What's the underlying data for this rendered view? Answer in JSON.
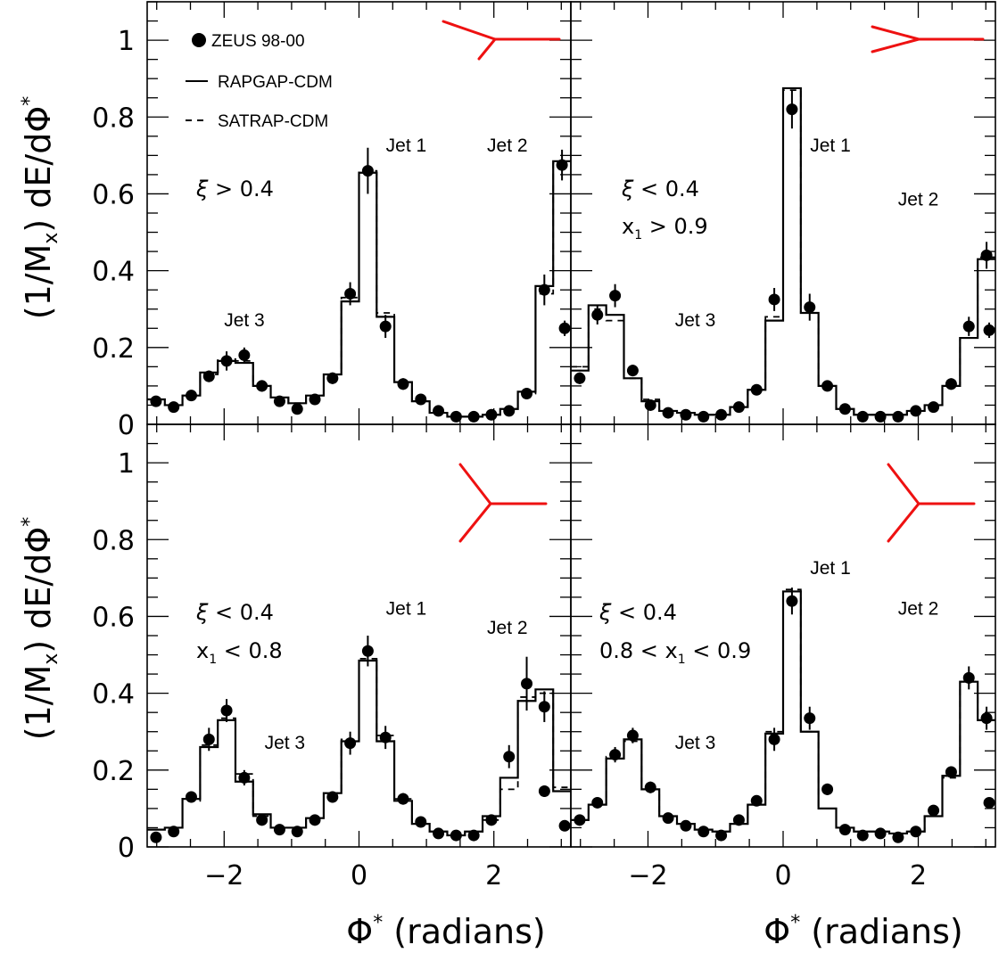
{
  "y_axis_title_parts": [
    "(1/M",
    "x",
    ") dE/d",
    "Φ",
    "*"
  ],
  "x_axis_title_parts": [
    "Φ",
    "*",
    " (radians)"
  ],
  "legend": {
    "data_label": "ZEUS 98-00",
    "solid_label": "RAPGAP-CDM",
    "dashed_label": "SATRAP-CDM"
  },
  "colors": {
    "diagram": "#ee1111",
    "ink": "#000000"
  },
  "chart_data": {
    "type": "histogram-with-points",
    "xlim": [
      -3.14159,
      3.14159
    ],
    "ylim": [
      0,
      1.1
    ],
    "x_ticks": [
      -2,
      0,
      2
    ],
    "y_ticks": [
      0,
      0.2,
      0.4,
      0.6,
      0.8,
      1
    ],
    "x_tick_labels": [
      "−2",
      "0",
      "2"
    ],
    "y_tick_labels": [
      "0",
      "0.2",
      "0.4",
      "0.6",
      "0.8",
      "1"
    ],
    "bin_edges": [
      -3.14159,
      -2.87979,
      -2.61799,
      -2.35619,
      -2.0944,
      -1.8326,
      -1.5708,
      -1.309,
      -1.0472,
      -0.7854,
      -0.5236,
      -0.2618,
      0,
      0.2618,
      0.5236,
      0.7854,
      1.0472,
      1.309,
      1.5708,
      1.8326,
      2.0944,
      2.35619,
      2.61799,
      2.87979,
      3.14159
    ],
    "panels": [
      {
        "id": "top-left",
        "cuts": [
          [
            "ξ",
            " > 0.4"
          ]
        ],
        "jet_labels": [
          {
            "text": "Jet 1",
            "x": 0.7,
            "y": 0.71
          },
          {
            "text": "Jet 2",
            "x": 2.2,
            "y": 0.71
          },
          {
            "text": "Jet 3",
            "x": -1.7,
            "y": 0.255
          }
        ],
        "diagram": "y-up",
        "points": [
          0.06,
          0.045,
          0.075,
          0.125,
          0.165,
          0.18,
          0.1,
          0.06,
          0.04,
          0.065,
          0.12,
          0.34,
          0.66,
          0.255,
          0.105,
          0.065,
          0.035,
          0.02,
          0.02,
          0.025,
          0.035,
          0.08,
          0.35,
          0.675
        ],
        "errors": [
          0.012,
          0.01,
          0.012,
          0.015,
          0.025,
          0.02,
          0.015,
          0.01,
          0.01,
          0.012,
          0.015,
          0.03,
          0.06,
          0.03,
          0.015,
          0.01,
          0.008,
          0.006,
          0.006,
          0.006,
          0.008,
          0.012,
          0.04,
          0.04
        ],
        "extra_points": [
          {
            "x": 3.05,
            "y": 0.25,
            "err": 0.02
          }
        ],
        "rapgap": [
          0.065,
          0.05,
          0.075,
          0.135,
          0.165,
          0.16,
          0.1,
          0.07,
          0.055,
          0.075,
          0.13,
          0.32,
          0.655,
          0.28,
          0.11,
          0.06,
          0.03,
          0.02,
          0.02,
          0.025,
          0.04,
          0.085,
          0.36,
          0.685,
          0.215
        ],
        "satrap": [
          0.065,
          0.05,
          0.075,
          0.13,
          0.17,
          0.165,
          0.1,
          0.07,
          0.055,
          0.075,
          0.13,
          0.33,
          0.66,
          0.29,
          0.11,
          0.06,
          0.03,
          0.02,
          0.02,
          0.025,
          0.04,
          0.08,
          0.34,
          0.68,
          0.215
        ]
      },
      {
        "id": "top-right",
        "cuts": [
          [
            "ξ",
            " < 0.4"
          ],
          [
            "x",
            "1",
            " > 0.9"
          ]
        ],
        "jet_labels": [
          {
            "text": "Jet 1",
            "x": 0.7,
            "y": 0.71
          },
          {
            "text": "Jet 2",
            "x": 2.0,
            "y": 0.57
          },
          {
            "text": "Jet 3",
            "x": -1.3,
            "y": 0.255
          }
        ],
        "diagram": "sideways",
        "points": [
          0.12,
          0.285,
          0.335,
          0.14,
          0.05,
          0.03,
          0.025,
          0.02,
          0.025,
          0.045,
          0.09,
          0.325,
          0.82,
          0.305,
          0.1,
          0.04,
          0.02,
          0.02,
          0.02,
          0.035,
          0.045,
          0.105,
          0.255,
          0.44
        ],
        "errors": [
          0.015,
          0.025,
          0.03,
          0.015,
          0.008,
          0.006,
          0.006,
          0.005,
          0.006,
          0.008,
          0.012,
          0.03,
          0.05,
          0.035,
          0.012,
          0.006,
          0.005,
          0.005,
          0.005,
          0.006,
          0.008,
          0.015,
          0.025,
          0.035
        ],
        "extra_points": [
          {
            "x": 3.05,
            "y": 0.245,
            "err": 0.02
          }
        ],
        "rapgap": [
          0.14,
          0.31,
          0.285,
          0.12,
          0.06,
          0.035,
          0.03,
          0.025,
          0.025,
          0.045,
          0.09,
          0.27,
          0.875,
          0.29,
          0.1,
          0.04,
          0.025,
          0.025,
          0.025,
          0.035,
          0.05,
          0.1,
          0.225,
          0.43,
          0.27
        ],
        "satrap": [
          0.15,
          0.3,
          0.27,
          0.12,
          0.065,
          0.035,
          0.03,
          0.025,
          0.025,
          0.045,
          0.09,
          0.28,
          0.87,
          0.29,
          0.1,
          0.04,
          0.025,
          0.025,
          0.025,
          0.035,
          0.05,
          0.1,
          0.225,
          0.435,
          0.27
        ]
      },
      {
        "id": "bottom-left",
        "cuts": [
          [
            "ξ",
            " < 0.4"
          ],
          [
            "x",
            "1",
            " < 0.8"
          ]
        ],
        "jet_labels": [
          {
            "text": "Jet 1",
            "x": 0.7,
            "y": 0.605
          },
          {
            "text": "Jet 2",
            "x": 2.2,
            "y": 0.555
          },
          {
            "text": "Jet 3",
            "x": -1.1,
            "y": 0.255
          }
        ],
        "diagram": "y-wide",
        "points": [
          0.025,
          0.04,
          0.13,
          0.28,
          0.355,
          0.18,
          0.07,
          0.045,
          0.04,
          0.07,
          0.13,
          0.27,
          0.51,
          0.285,
          0.125,
          0.065,
          0.035,
          0.03,
          0.03,
          0.07,
          0.235,
          0.425,
          0.365
        ],
        "errors": [
          0.006,
          0.008,
          0.015,
          0.03,
          0.03,
          0.02,
          0.01,
          0.008,
          0.008,
          0.01,
          0.015,
          0.03,
          0.04,
          0.03,
          0.015,
          0.008,
          0.006,
          0.006,
          0.006,
          0.01,
          0.03,
          0.07,
          0.04
        ],
        "extra_points": [
          {
            "x": 2.75,
            "y": 0.145,
            "err": 0.015
          },
          {
            "x": 3.05,
            "y": 0.055,
            "err": 0.008
          }
        ],
        "rapgap": [
          0.045,
          0.05,
          0.125,
          0.26,
          0.33,
          0.17,
          0.085,
          0.05,
          0.05,
          0.075,
          0.14,
          0.275,
          0.485,
          0.275,
          0.12,
          0.06,
          0.04,
          0.03,
          0.04,
          0.08,
          0.18,
          0.38,
          0.41,
          0.145,
          0.055
        ],
        "satrap": [
          0.045,
          0.05,
          0.12,
          0.265,
          0.335,
          0.19,
          0.08,
          0.05,
          0.05,
          0.075,
          0.14,
          0.28,
          0.49,
          0.29,
          0.125,
          0.06,
          0.04,
          0.03,
          0.04,
          0.07,
          0.15,
          0.39,
          0.4,
          0.155,
          0.055
        ]
      },
      {
        "id": "bottom-right",
        "cuts": [
          [
            "ξ",
            " < 0.4"
          ],
          [
            "0.8 < x",
            "1",
            " < 0.9"
          ]
        ],
        "jet_labels": [
          {
            "text": "Jet 1",
            "x": 0.7,
            "y": 0.71
          },
          {
            "text": "Jet 2",
            "x": 2.0,
            "y": 0.605
          },
          {
            "text": "Jet 3",
            "x": -1.3,
            "y": 0.255
          }
        ],
        "diagram": "y-wide",
        "points": [
          0.07,
          0.115,
          0.24,
          0.29,
          0.155,
          0.075,
          0.055,
          0.04,
          0.03,
          0.07,
          0.12,
          0.28,
          0.64,
          0.335,
          0.15,
          0.045,
          0.03,
          0.035,
          0.025,
          0.04,
          0.095,
          0.195,
          0.44,
          0.335
        ],
        "errors": [
          0.008,
          0.01,
          0.02,
          0.02,
          0.015,
          0.008,
          0.008,
          0.006,
          0.006,
          0.008,
          0.012,
          0.03,
          0.035,
          0.03,
          0.015,
          0.006,
          0.006,
          0.006,
          0.005,
          0.006,
          0.01,
          0.015,
          0.03,
          0.03
        ],
        "extra_points": [
          {
            "x": 3.05,
            "y": 0.115,
            "err": 0.01
          }
        ],
        "rapgap": [
          0.07,
          0.11,
          0.23,
          0.28,
          0.15,
          0.08,
          0.06,
          0.045,
          0.04,
          0.06,
          0.11,
          0.295,
          0.665,
          0.3,
          0.1,
          0.05,
          0.04,
          0.04,
          0.035,
          0.04,
          0.08,
          0.185,
          0.43,
          0.33,
          0.145
        ],
        "satrap": [
          0.07,
          0.11,
          0.235,
          0.275,
          0.15,
          0.08,
          0.06,
          0.045,
          0.04,
          0.06,
          0.11,
          0.3,
          0.67,
          0.3,
          0.1,
          0.05,
          0.04,
          0.04,
          0.035,
          0.04,
          0.08,
          0.18,
          0.43,
          0.33,
          0.14
        ]
      }
    ]
  }
}
